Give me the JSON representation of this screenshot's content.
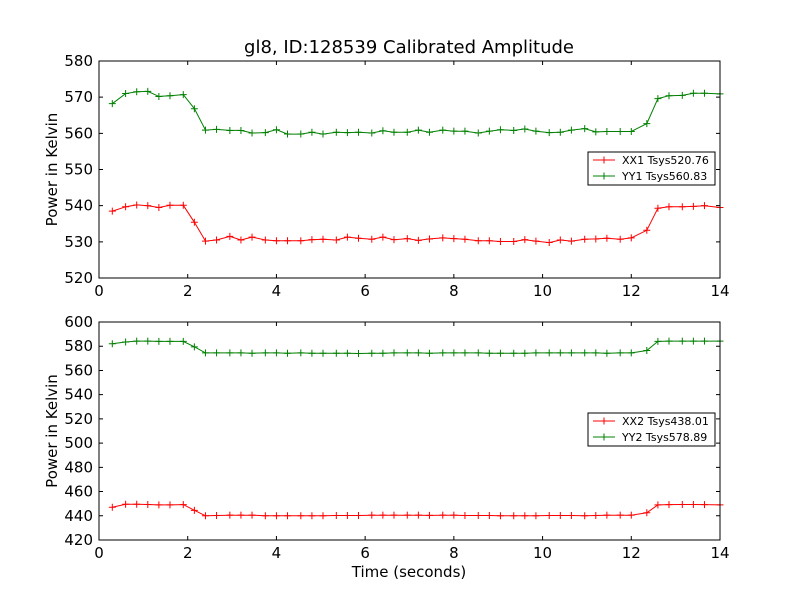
{
  "figure": {
    "title": "gl8, ID:128539 Calibrated Amplitude",
    "xlabel": "Time (seconds)"
  },
  "colors": {
    "red": "#ff0000",
    "green": "#008000"
  },
  "chart_data": [
    {
      "type": "line",
      "title": "gl8, ID:128539 Calibrated Amplitude",
      "xlabel": "",
      "ylabel": "Power in Kelvin",
      "xlim": [
        0,
        14
      ],
      "ylim": [
        520,
        580
      ],
      "xticks": [
        0,
        2,
        4,
        6,
        8,
        10,
        12,
        14
      ],
      "yticks": [
        520,
        530,
        540,
        550,
        560,
        570,
        580
      ],
      "grid": false,
      "legend_position": "right",
      "marker": "plus",
      "x": [
        0.3,
        0.6,
        0.85,
        1.1,
        1.35,
        1.6,
        1.9,
        2.15,
        2.4,
        2.65,
        2.95,
        3.2,
        3.45,
        3.75,
        4.0,
        4.25,
        4.55,
        4.8,
        5.05,
        5.35,
        5.6,
        5.85,
        6.15,
        6.4,
        6.65,
        6.95,
        7.2,
        7.45,
        7.75,
        8.0,
        8.25,
        8.55,
        8.8,
        9.05,
        9.35,
        9.6,
        9.85,
        10.15,
        10.4,
        10.65,
        10.95,
        11.2,
        11.45,
        11.75,
        12.0,
        12.35,
        12.6,
        12.85,
        13.15,
        13.4,
        13.65,
        14.0
      ],
      "series": [
        {
          "name": "XX1 Tsys520.76",
          "color": "#ff0000",
          "values": [
            538.5,
            539.7,
            540.2,
            540.0,
            539.5,
            540.1,
            540.1,
            535.4,
            530.2,
            530.5,
            531.5,
            530.5,
            531.3,
            530.5,
            530.3,
            530.3,
            530.3,
            530.6,
            530.7,
            530.5,
            531.3,
            531.0,
            530.7,
            531.3,
            530.6,
            530.9,
            530.4,
            530.8,
            531.1,
            530.9,
            530.7,
            530.3,
            530.3,
            530.1,
            530.1,
            530.6,
            530.2,
            529.8,
            530.5,
            530.2,
            530.7,
            530.8,
            531.0,
            530.7,
            531.1,
            533.2,
            539.3,
            539.7,
            539.7,
            539.8,
            540.0,
            539.5
          ]
        },
        {
          "name": "YY1 Tsys560.83",
          "color": "#008000",
          "values": [
            568.2,
            571.0,
            571.5,
            571.6,
            570.2,
            570.4,
            570.7,
            566.8,
            560.9,
            561.1,
            560.8,
            560.8,
            560.1,
            560.2,
            561.0,
            559.8,
            559.8,
            560.3,
            559.8,
            560.3,
            560.2,
            560.3,
            560.1,
            560.7,
            560.3,
            560.3,
            560.9,
            560.3,
            560.9,
            560.6,
            560.6,
            560.1,
            560.6,
            561.0,
            560.8,
            561.2,
            560.6,
            560.2,
            560.3,
            560.9,
            561.3,
            560.4,
            560.5,
            560.5,
            560.5,
            562.7,
            569.6,
            570.4,
            570.5,
            571.1,
            571.1,
            570.9
          ]
        }
      ]
    },
    {
      "type": "line",
      "title": "",
      "xlabel": "Time (seconds)",
      "ylabel": "Power in Kelvin",
      "xlim": [
        0,
        14
      ],
      "ylim": [
        420,
        600
      ],
      "xticks": [
        0,
        2,
        4,
        6,
        8,
        10,
        12,
        14
      ],
      "yticks": [
        420,
        440,
        460,
        480,
        500,
        520,
        540,
        560,
        580,
        600
      ],
      "grid": false,
      "legend_position": "right",
      "marker": "plus",
      "x": [
        0.3,
        0.6,
        0.85,
        1.1,
        1.35,
        1.6,
        1.9,
        2.15,
        2.4,
        2.65,
        2.95,
        3.2,
        3.45,
        3.75,
        4.0,
        4.25,
        4.55,
        4.8,
        5.05,
        5.35,
        5.6,
        5.85,
        6.15,
        6.4,
        6.65,
        6.95,
        7.2,
        7.45,
        7.75,
        8.0,
        8.25,
        8.55,
        8.8,
        9.05,
        9.35,
        9.6,
        9.85,
        10.15,
        10.4,
        10.65,
        10.95,
        11.2,
        11.45,
        11.75,
        12.0,
        12.35,
        12.6,
        12.85,
        13.15,
        13.4,
        13.65,
        14.0
      ],
      "series": [
        {
          "name": "XX2 Tsys438.01",
          "color": "#ff0000",
          "values": [
            447.0,
            449.5,
            449.5,
            449.3,
            449.0,
            449.0,
            449.2,
            444.5,
            440.0,
            440.2,
            440.5,
            440.5,
            440.5,
            440.0,
            440.0,
            440.0,
            440.0,
            440.0,
            440.0,
            440.2,
            440.2,
            440.2,
            440.5,
            440.5,
            440.5,
            440.5,
            440.5,
            440.3,
            440.5,
            440.5,
            440.2,
            440.2,
            440.2,
            440.0,
            440.0,
            440.0,
            440.0,
            440.2,
            440.2,
            440.2,
            440.0,
            440.2,
            440.5,
            440.5,
            440.5,
            442.5,
            449.0,
            449.2,
            449.3,
            449.3,
            449.2,
            449.0
          ]
        },
        {
          "name": "YY2 Tsys578.89",
          "color": "#008000",
          "values": [
            582.0,
            583.5,
            584.2,
            584.2,
            584.0,
            584.0,
            584.0,
            579.5,
            574.5,
            574.5,
            574.5,
            574.5,
            574.2,
            574.5,
            574.5,
            574.2,
            574.5,
            574.2,
            574.2,
            574.2,
            574.2,
            574.0,
            574.2,
            574.2,
            574.5,
            574.5,
            574.5,
            574.2,
            574.5,
            574.5,
            574.5,
            574.5,
            574.2,
            574.2,
            574.2,
            574.2,
            574.5,
            574.5,
            574.5,
            574.5,
            574.5,
            574.5,
            574.2,
            574.5,
            574.5,
            576.5,
            584.0,
            584.2,
            584.2,
            584.2,
            584.2,
            584.2
          ]
        }
      ]
    }
  ]
}
